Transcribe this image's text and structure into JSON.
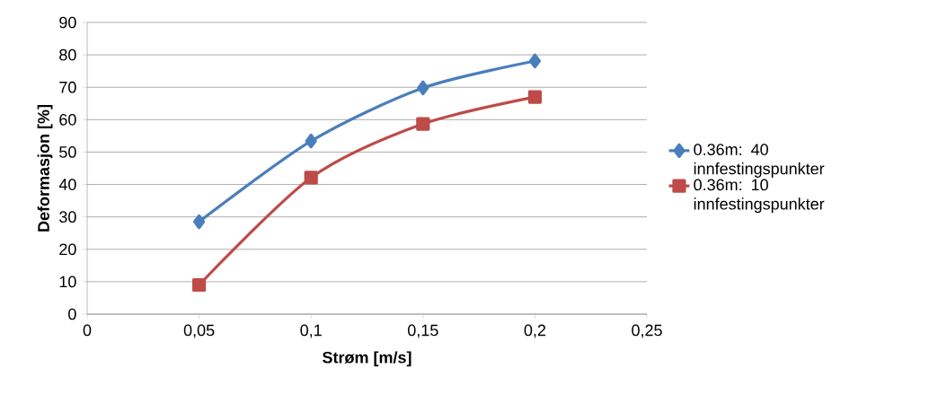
{
  "chart_data": {
    "type": "line",
    "xlabel": "Strøm [m/s]",
    "ylabel": "Deformasjon [%]",
    "xlim": [
      0,
      0.25
    ],
    "ylim": [
      0,
      90
    ],
    "xticks": [
      0,
      {
        "value": 0.05,
        "label": "0,05"
      },
      {
        "value": 0.1,
        "label": "0,1"
      },
      {
        "value": 0.15,
        "label": "0,15"
      },
      {
        "value": 0.2,
        "label": "0,2"
      },
      {
        "value": 0.25,
        "label": "0,25"
      }
    ],
    "yticks": [
      0,
      10,
      20,
      30,
      40,
      50,
      60,
      70,
      80,
      90
    ],
    "x": [
      0.05,
      0.1,
      0.15,
      0.2
    ],
    "series": [
      {
        "name": "0.36m: 40 innfestingspunkter",
        "color": "#4a7ebb",
        "marker": "diamond",
        "values": [
          28.5,
          53.4,
          69.8,
          78.1
        ]
      },
      {
        "name": "0.36m: 10 innfestingspunkter",
        "color": "#be4b48",
        "marker": "square",
        "values": [
          9.0,
          42.1,
          58.7,
          67.0
        ]
      }
    ],
    "grid": "y",
    "legend": "right"
  }
}
